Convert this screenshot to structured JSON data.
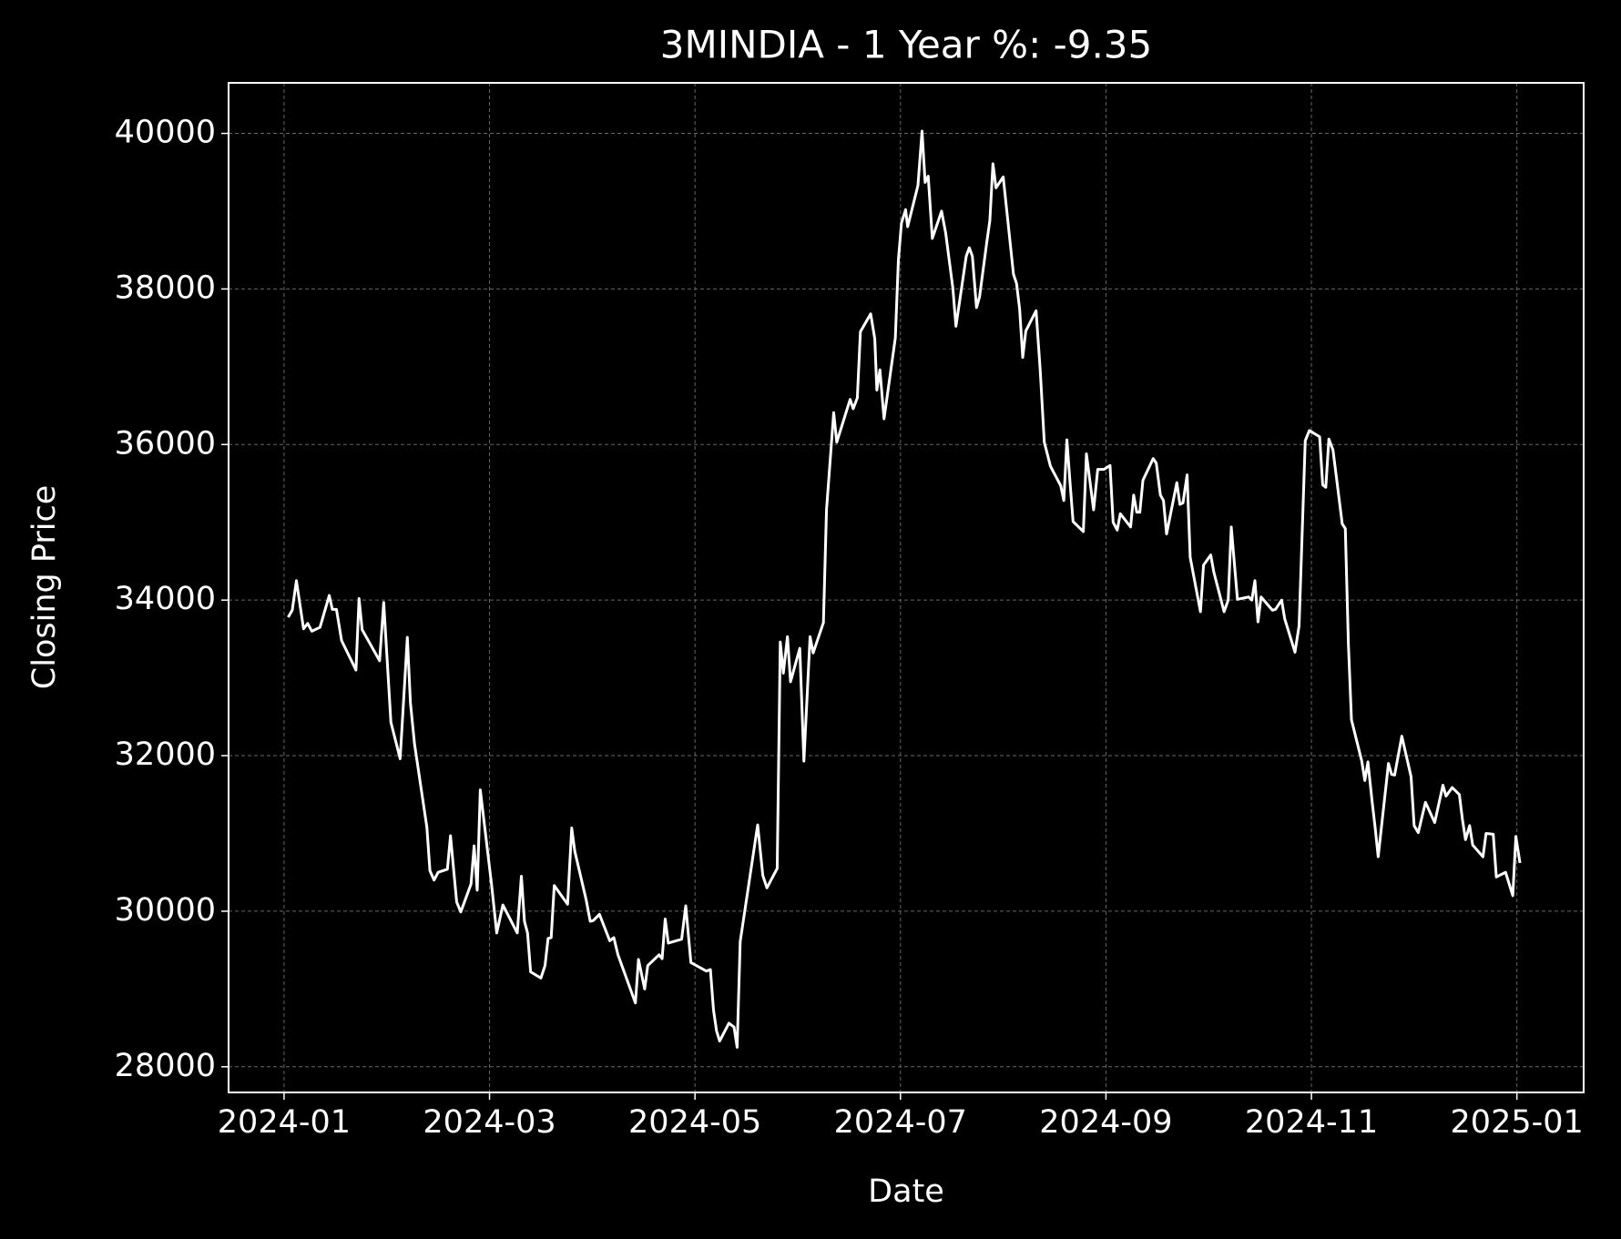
{
  "chart_data": {
    "type": "line",
    "title": "3MINDIA - 1 Year %: -9.35",
    "xlabel": "Date",
    "ylabel": "Closing Price",
    "x": [
      0.04,
      0.08,
      0.12,
      0.19,
      0.23,
      0.27,
      0.35,
      0.44,
      0.47,
      0.51,
      0.56,
      0.7,
      0.73,
      0.76,
      0.93,
      0.97,
      1.04,
      1.13,
      1.2,
      1.23,
      1.27,
      1.39,
      1.42,
      1.46,
      1.5,
      1.59,
      1.62,
      1.68,
      1.72,
      1.82,
      1.85,
      1.88,
      1.91,
      2.02,
      2.07,
      2.13,
      2.27,
      2.31,
      2.34,
      2.37,
      2.4,
      2.5,
      2.54,
      2.57,
      2.6,
      2.63,
      2.76,
      2.8,
      2.83,
      2.94,
      2.98,
      3.01,
      3.07,
      3.17,
      3.21,
      3.25,
      3.42,
      3.45,
      3.51,
      3.54,
      3.65,
      3.68,
      3.71,
      3.74,
      3.87,
      3.91,
      3.96,
      4.11,
      4.15,
      4.18,
      4.21,
      4.24,
      4.33,
      4.38,
      4.41,
      4.44,
      4.61,
      4.66,
      4.7,
      4.8,
      4.83,
      4.86,
      4.9,
      4.93,
      5.02,
      5.06,
      5.12,
      5.15,
      5.25,
      5.28,
      5.35,
      5.38,
      5.51,
      5.54,
      5.58,
      5.61,
      5.71,
      5.75,
      5.77,
      5.8,
      5.84,
      5.95,
      5.98,
      6.01,
      6.05,
      6.07,
      6.17,
      6.21,
      6.24,
      6.27,
      6.31,
      6.4,
      6.44,
      6.51,
      6.54,
      6.64,
      6.67,
      6.7,
      6.74,
      6.77,
      6.84,
      6.87,
      6.9,
      6.93,
      7.0,
      7.1,
      7.13,
      7.16,
      7.19,
      7.22,
      7.32,
      7.36,
      7.4,
      7.46,
      7.56,
      7.59,
      7.62,
      7.65,
      7.68,
      7.78,
      7.81,
      7.88,
      7.92,
      7.98,
      8.04,
      8.07,
      8.11,
      8.14,
      8.24,
      8.27,
      8.3,
      8.33,
      8.36,
      8.46,
      8.49,
      8.53,
      8.56,
      8.59,
      8.69,
      8.72,
      8.75,
      8.79,
      8.82,
      8.92,
      8.95,
      9.02,
      9.05,
      9.15,
      9.19,
      9.22,
      9.28,
      9.39,
      9.42,
      9.45,
      9.48,
      9.51,
      9.62,
      9.65,
      9.71,
      9.74,
      9.84,
      9.88,
      9.94,
      9.98,
      10.08,
      10.11,
      10.14,
      10.17,
      10.21,
      10.3,
      10.33,
      10.36,
      10.39,
      10.49,
      10.52,
      10.55,
      10.59,
      10.62,
      10.65,
      10.75,
      10.78,
      10.81,
      10.88,
      10.97,
      11.0,
      11.04,
      11.11,
      11.2,
      11.28,
      11.31,
      11.37,
      11.44,
      11.47,
      11.5,
      11.54,
      11.57,
      11.67,
      11.7,
      11.77,
      11.8,
      11.89,
      11.96,
      11.99,
      12.03
    ],
    "series": [
      {
        "color": "#ffffff",
        "values": [
          33780,
          33870,
          34250,
          33630,
          33700,
          33600,
          33650,
          34060,
          33880,
          33880,
          33480,
          33100,
          34020,
          33620,
          33220,
          33970,
          32430,
          31960,
          33520,
          32680,
          32150,
          31080,
          30520,
          30400,
          30500,
          30540,
          30970,
          30120,
          29990,
          30350,
          30840,
          30270,
          31560,
          30340,
          29720,
          30080,
          29720,
          30450,
          29870,
          29720,
          29220,
          29140,
          29300,
          29650,
          29660,
          30330,
          30090,
          31070,
          30770,
          30150,
          29870,
          29880,
          29960,
          29620,
          29660,
          29440,
          28820,
          29380,
          29000,
          29300,
          29440,
          29390,
          29900,
          29590,
          29640,
          30070,
          29340,
          29230,
          29250,
          28730,
          28460,
          28330,
          28560,
          28510,
          28250,
          29610,
          31110,
          30460,
          30300,
          30550,
          33460,
          33060,
          33530,
          32950,
          33380,
          31930,
          33530,
          33320,
          33710,
          35160,
          36410,
          36030,
          36580,
          36460,
          36600,
          37450,
          37680,
          37360,
          36700,
          36960,
          36330,
          37370,
          38380,
          38850,
          39020,
          38800,
          39330,
          40030,
          39370,
          39450,
          38650,
          39000,
          38720,
          38010,
          37520,
          38420,
          38530,
          38420,
          37760,
          37900,
          38600,
          38880,
          39610,
          39300,
          39440,
          38190,
          38070,
          37740,
          37120,
          37460,
          37720,
          36960,
          36030,
          35720,
          35470,
          35280,
          36060,
          35520,
          35010,
          34880,
          35880,
          35160,
          35680,
          35680,
          35730,
          35000,
          34900,
          35110,
          34940,
          35350,
          35130,
          35130,
          35540,
          35820,
          35760,
          35350,
          35280,
          34850,
          35510,
          35230,
          35250,
          35610,
          34550,
          33850,
          34450,
          34580,
          34360,
          33850,
          34000,
          34940,
          34010,
          34040,
          34000,
          34250,
          33720,
          34040,
          33870,
          33880,
          34000,
          33760,
          33330,
          33670,
          36050,
          36180,
          36100,
          35480,
          35450,
          36070,
          35930,
          34980,
          34920,
          33430,
          32460,
          31930,
          31680,
          31920,
          31420,
          31080,
          30700,
          31900,
          31760,
          31750,
          32250,
          31730,
          31100,
          31010,
          31400,
          31140,
          31620,
          31480,
          31590,
          31500,
          31180,
          30920,
          31100,
          30850,
          30700,
          31000,
          30990,
          30440,
          30500,
          30200,
          30960,
          30620
        ]
      }
    ],
    "xlim": [
      -0.54,
      12.65
    ],
    "xticks": [
      {
        "value": 0,
        "label": "2024-01"
      },
      {
        "value": 2,
        "label": "2024-03"
      },
      {
        "value": 4,
        "label": "2024-05"
      },
      {
        "value": 6,
        "label": "2024-07"
      },
      {
        "value": 8,
        "label": "2024-09"
      },
      {
        "value": 10,
        "label": "2024-11"
      },
      {
        "value": 12,
        "label": "2025-01"
      }
    ],
    "ylim": [
      27670,
      40650
    ],
    "yticks": [
      28000,
      30000,
      32000,
      34000,
      36000,
      38000,
      40000
    ],
    "grid": true
  }
}
